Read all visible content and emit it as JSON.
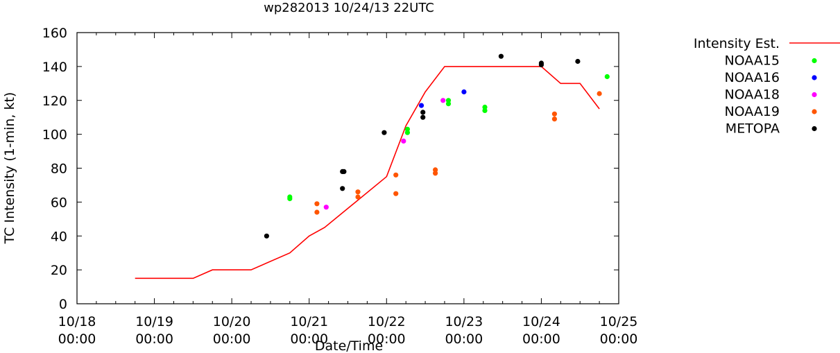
{
  "chart_data": {
    "type": "scatter",
    "title": "wp282013 10/24/13 22UTC",
    "xlabel": "Date/Time",
    "ylabel": "TC Intensity (1-min, kt)",
    "xlim": [
      0,
      7
    ],
    "ylim": [
      0,
      160
    ],
    "x_ticks": [
      {
        "value": 0,
        "label": [
          "10/18",
          "00:00"
        ]
      },
      {
        "value": 1,
        "label": [
          "10/19",
          "00:00"
        ]
      },
      {
        "value": 2,
        "label": [
          "10/20",
          "00:00"
        ]
      },
      {
        "value": 3,
        "label": [
          "10/21",
          "00:00"
        ]
      },
      {
        "value": 4,
        "label": [
          "10/22",
          "00:00"
        ]
      },
      {
        "value": 5,
        "label": [
          "10/23",
          "00:00"
        ]
      },
      {
        "value": 6,
        "label": [
          "10/24",
          "00:00"
        ]
      },
      {
        "value": 7,
        "label": [
          "10/25",
          "00:00"
        ]
      }
    ],
    "y_ticks": [
      0,
      20,
      40,
      60,
      80,
      100,
      120,
      140,
      160
    ],
    "x_units": "days since 10/18 00:00",
    "legend_position": "outside-right",
    "series": [
      {
        "name": "Intensity Est.",
        "kind": "line",
        "color": "#ff0000",
        "points": [
          [
            0.75,
            15
          ],
          [
            1.5,
            15
          ],
          [
            1.75,
            20
          ],
          [
            2.25,
            20
          ],
          [
            2.75,
            30
          ],
          [
            3.0,
            40
          ],
          [
            3.2,
            45
          ],
          [
            4.0,
            75
          ],
          [
            4.25,
            105
          ],
          [
            4.5,
            125
          ],
          [
            4.75,
            140
          ],
          [
            6.0,
            140
          ],
          [
            6.25,
            130
          ],
          [
            6.5,
            130
          ],
          [
            6.75,
            115
          ]
        ]
      },
      {
        "name": "NOAA15",
        "kind": "points",
        "color": "#00ff00",
        "points": [
          [
            2.75,
            62
          ],
          [
            2.75,
            63
          ],
          [
            4.27,
            101
          ],
          [
            4.27,
            103
          ],
          [
            4.8,
            118
          ],
          [
            4.8,
            120
          ],
          [
            5.27,
            114
          ],
          [
            5.27,
            116
          ],
          [
            6.85,
            134
          ]
        ]
      },
      {
        "name": "NOAA16",
        "kind": "points",
        "color": "#0000ff",
        "points": [
          [
            4.45,
            117
          ],
          [
            5.0,
            125
          ]
        ]
      },
      {
        "name": "NOAA18",
        "kind": "points",
        "color": "#ff00ff",
        "points": [
          [
            3.22,
            57
          ],
          [
            4.22,
            96
          ],
          [
            4.73,
            120
          ]
        ]
      },
      {
        "name": "NOAA19",
        "kind": "points",
        "color": "#ff5500",
        "points": [
          [
            3.1,
            54
          ],
          [
            3.1,
            59
          ],
          [
            3.63,
            63
          ],
          [
            3.63,
            66
          ],
          [
            4.12,
            65
          ],
          [
            4.12,
            76
          ],
          [
            4.63,
            77
          ],
          [
            4.63,
            79
          ],
          [
            6.17,
            109
          ],
          [
            6.17,
            112
          ],
          [
            6.75,
            124
          ]
        ]
      },
      {
        "name": "METOPA",
        "kind": "points",
        "color": "#000000",
        "points": [
          [
            2.45,
            40
          ],
          [
            3.43,
            68
          ],
          [
            3.43,
            78
          ],
          [
            3.45,
            78
          ],
          [
            3.97,
            101
          ],
          [
            4.47,
            110
          ],
          [
            4.47,
            113
          ],
          [
            5.48,
            146
          ],
          [
            6.0,
            141
          ],
          [
            6.0,
            142
          ],
          [
            6.47,
            143
          ]
        ]
      }
    ]
  }
}
